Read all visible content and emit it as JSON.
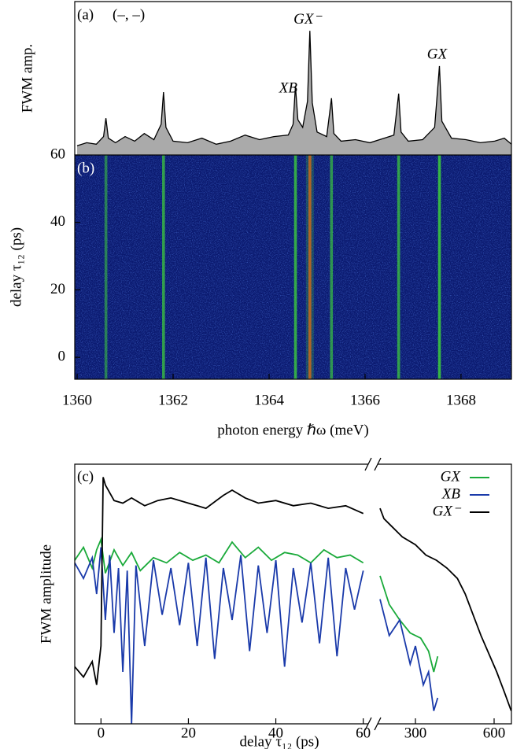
{
  "chart_data": [
    {
      "type": "area",
      "label": "(a)",
      "annotation": "(–, –)",
      "ylabel": "FWM amp.",
      "color": "#aaaaaa",
      "xlim": [
        1359.95,
        1369.05
      ],
      "ylim": [
        0,
        10
      ],
      "x": [
        1360,
        1360.2,
        1360.4,
        1360.55,
        1360.6,
        1360.65,
        1360.8,
        1361.0,
        1361.2,
        1361.4,
        1361.6,
        1361.75,
        1361.8,
        1361.85,
        1362.0,
        1362.3,
        1362.6,
        1362.9,
        1363.2,
        1363.5,
        1363.8,
        1364.1,
        1364.4,
        1364.5,
        1364.55,
        1364.6,
        1364.7,
        1364.8,
        1364.85,
        1364.9,
        1365.0,
        1365.2,
        1365.3,
        1365.35,
        1365.5,
        1365.8,
        1366.1,
        1366.4,
        1366.6,
        1366.7,
        1366.75,
        1366.9,
        1367.2,
        1367.45,
        1367.55,
        1367.6,
        1367.8,
        1368.1,
        1368.4,
        1368.7,
        1368.9,
        1369.1
      ],
      "values": [
        0.6,
        0.8,
        0.7,
        1.2,
        2.4,
        1.1,
        0.8,
        1.2,
        0.9,
        1.4,
        1.0,
        2.0,
        4.1,
        1.8,
        0.9,
        0.8,
        1.1,
        0.7,
        0.9,
        1.3,
        1.0,
        1.2,
        1.3,
        2.0,
        4.5,
        2.3,
        1.8,
        3.5,
        8.1,
        3.4,
        1.5,
        1.2,
        3.7,
        1.4,
        0.9,
        1.0,
        0.8,
        1.1,
        1.3,
        4.0,
        1.5,
        0.9,
        1.0,
        1.8,
        5.8,
        2.2,
        1.1,
        1.0,
        0.8,
        0.9,
        1.1,
        0.7
      ],
      "peak_labels": [
        {
          "text": "XB",
          "x": 1364.4,
          "y": 4.3
        },
        {
          "text": "GX⁻",
          "x": 1364.8,
          "y": 8.8
        },
        {
          "text": "GX",
          "x": 1367.5,
          "y": 6.5
        }
      ]
    },
    {
      "type": "heatmap",
      "label": "(b)",
      "xlabel": "photon energy ℏω (meV)",
      "ylabel": "delay τ₁₂ (ps)",
      "xlim": [
        1359.95,
        1369.05
      ],
      "ylim": [
        -6.5,
        60
      ],
      "xticks": [
        1360,
        1362,
        1364,
        1366,
        1368
      ],
      "yticks": [
        0,
        20,
        40,
        60
      ],
      "background": "#0b1a70",
      "line_color": "#3fd23a",
      "peak_color": "#e0401a",
      "lines": [
        1360.6,
        1361.8,
        1364.55,
        1364.85,
        1365.3,
        1366.7,
        1367.55
      ],
      "intensity": [
        0.3,
        0.6,
        0.7,
        1.0,
        0.5,
        0.6,
        0.8
      ]
    },
    {
      "type": "line",
      "label": "(c)",
      "xlabel": "delay τ₁₂ (ps)",
      "ylabel": "FWM amplitude",
      "xlim": [
        -6,
        61.5
      ],
      "x2lim": [
        150,
        666
      ],
      "ylim": [
        0,
        10
      ],
      "xticks": [
        0,
        20,
        40,
        60
      ],
      "x2ticks": [
        300,
        600
      ],
      "series": [
        {
          "name": "GX",
          "color": "#1aaa3a",
          "x": [
            -6,
            -4,
            -2,
            -1,
            0,
            1,
            3,
            5,
            7,
            9,
            12,
            15,
            18,
            21,
            24,
            27,
            30,
            33,
            36,
            39,
            42,
            45,
            48,
            51,
            54,
            57,
            60,
            165,
            200,
            240,
            280,
            320,
            350,
            370,
            385
          ],
          "values": [
            6.3,
            6.8,
            6.0,
            6.7,
            7.1,
            5.8,
            6.7,
            6.1,
            6.6,
            5.9,
            6.4,
            6.2,
            6.6,
            6.3,
            6.5,
            6.2,
            7.0,
            6.4,
            6.8,
            6.3,
            6.6,
            6.5,
            6.2,
            6.7,
            6.4,
            6.5,
            6.2,
            5.7,
            4.6,
            4.0,
            3.5,
            3.3,
            2.8,
            2.0,
            2.6
          ]
        },
        {
          "name": "XB",
          "color": "#1a3aaa",
          "x": [
            -6,
            -4,
            -2,
            -1,
            0,
            1,
            2,
            3,
            4,
            5,
            6,
            7,
            8,
            10,
            12,
            14,
            16,
            18,
            20,
            22,
            24,
            26,
            28,
            30,
            32,
            34,
            36,
            38,
            40,
            42,
            44,
            46,
            48,
            50,
            52,
            54,
            56,
            58,
            60,
            165,
            200,
            240,
            280,
            300,
            330,
            350,
            370,
            385
          ],
          "values": [
            6.2,
            5.6,
            6.4,
            5.0,
            6.8,
            4.0,
            6.5,
            3.5,
            6.0,
            2.0,
            5.9,
            0.0,
            6.1,
            3.0,
            6.3,
            4.2,
            6.0,
            3.8,
            6.2,
            3.0,
            6.4,
            2.5,
            6.0,
            4.0,
            6.5,
            2.8,
            6.1,
            3.5,
            6.3,
            2.2,
            6.0,
            3.9,
            6.2,
            3.1,
            6.4,
            2.6,
            6.0,
            4.4,
            5.9,
            4.8,
            3.4,
            4.0,
            2.3,
            3.0,
            1.5,
            2.0,
            0.5,
            1.0
          ]
        },
        {
          "name": "GX⁻",
          "color": "#000000",
          "x": [
            -6,
            -4,
            -2,
            -1,
            0,
            0.5,
            1,
            3,
            5,
            7,
            10,
            13,
            16,
            20,
            24,
            28,
            30,
            33,
            36,
            40,
            44,
            48,
            52,
            56,
            60,
            165,
            180,
            210,
            250,
            300,
            340,
            380,
            420,
            460,
            490,
            520,
            550,
            580,
            610,
            640,
            665
          ],
          "values": [
            2.2,
            1.8,
            2.4,
            1.5,
            3.0,
            9.5,
            9.2,
            8.6,
            8.5,
            8.7,
            8.4,
            8.6,
            8.7,
            8.5,
            8.3,
            8.8,
            9.0,
            8.7,
            8.5,
            8.6,
            8.4,
            8.5,
            8.3,
            8.4,
            8.1,
            8.3,
            7.9,
            7.6,
            7.2,
            6.9,
            6.5,
            6.3,
            6.0,
            5.6,
            5.0,
            4.2,
            3.4,
            2.7,
            2.0,
            1.2,
            0.5
          ]
        }
      ]
    }
  ]
}
